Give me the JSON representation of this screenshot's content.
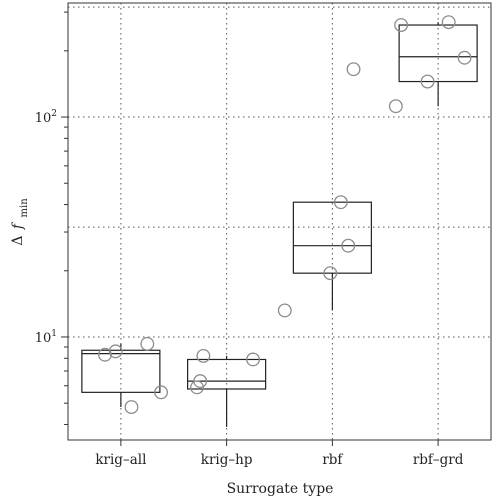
{
  "chart_data": {
    "type": "boxplot",
    "title": "",
    "xlabel": "Surrogate type",
    "ylabel": {
      "prefix": "Δ",
      "symbol": "f",
      "subscript": "min"
    },
    "yscale": "log",
    "ylim": [
      3.4,
      330
    ],
    "grid": true,
    "categories": [
      "krig–all",
      "krig–hp",
      "rbf",
      "rbf–grd"
    ],
    "y_major_ticks": [
      {
        "value": 10,
        "base": "10",
        "exp": "1"
      },
      {
        "value": 100,
        "base": "10",
        "exp": "2"
      }
    ],
    "y_minor_ticks": [
      4,
      5,
      6,
      7,
      8,
      9,
      20,
      30,
      40,
      50,
      60,
      70,
      80,
      90,
      200,
      300
    ],
    "y_grid_values": [
      10,
      31.6,
      100,
      316
    ],
    "boxes": [
      {
        "category": "krig–all",
        "whisker_low": 4.8,
        "q1": 5.6,
        "median": 8.4,
        "q3": 8.7,
        "whisker_high": 9.3
      },
      {
        "category": "krig–hp",
        "whisker_low": 3.9,
        "q1": 5.8,
        "median": 6.3,
        "q3": 7.9,
        "whisker_high": 8.2
      },
      {
        "category": "rbf",
        "whisker_low": 13.2,
        "q1": 19.5,
        "median": 26,
        "q3": 41,
        "whisker_high": 41
      },
      {
        "category": "rbf–grd",
        "whisker_low": 112,
        "q1": 145,
        "median": 188,
        "q3": 262,
        "whisker_high": 270
      }
    ],
    "points": [
      {
        "category": "krig–all",
        "jitter": -0.15,
        "value": 8.3
      },
      {
        "category": "krig–all",
        "jitter": -0.05,
        "value": 8.6
      },
      {
        "category": "krig–all",
        "jitter": 0.1,
        "value": 4.8
      },
      {
        "category": "krig–all",
        "jitter": 0.25,
        "value": 9.3
      },
      {
        "category": "krig–all",
        "jitter": 0.38,
        "value": 5.6
      },
      {
        "category": "krig–hp",
        "jitter": -0.28,
        "value": 5.9
      },
      {
        "category": "krig–hp",
        "jitter": -0.25,
        "value": 6.3
      },
      {
        "category": "krig–hp",
        "jitter": -0.22,
        "value": 8.2
      },
      {
        "category": "krig–hp",
        "jitter": 0.25,
        "value": 7.9
      },
      {
        "category": "rbf",
        "jitter": -0.45,
        "value": 13.2
      },
      {
        "category": "rbf",
        "jitter": -0.02,
        "value": 19.5
      },
      {
        "category": "rbf",
        "jitter": 0.08,
        "value": 41
      },
      {
        "category": "rbf",
        "jitter": 0.15,
        "value": 26
      },
      {
        "category": "rbf",
        "jitter": 0.2,
        "value": 165
      },
      {
        "category": "rbf–grd",
        "jitter": -0.4,
        "value": 112
      },
      {
        "category": "rbf–grd",
        "jitter": -0.35,
        "value": 262
      },
      {
        "category": "rbf–grd",
        "jitter": -0.1,
        "value": 145
      },
      {
        "category": "rbf–grd",
        "jitter": 0.1,
        "value": 270
      },
      {
        "category": "rbf–grd",
        "jitter": 0.25,
        "value": 186
      }
    ]
  },
  "colors": {
    "axis": "#333333",
    "box": "#222222",
    "point_stroke": "#8c8c8c",
    "grid": "#555555",
    "background": "#ffffff"
  }
}
